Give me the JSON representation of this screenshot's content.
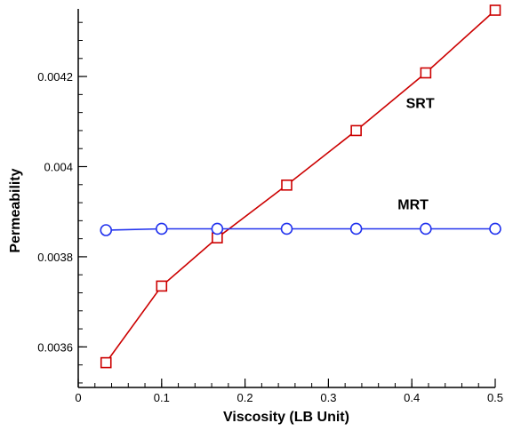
{
  "chart_data": {
    "type": "line",
    "xlabel": "Viscosity (LB Unit)",
    "ylabel": "Permeability",
    "xlim": [
      0,
      0.5
    ],
    "ylim": [
      0.00351,
      0.00435
    ],
    "x_ticks": [
      {
        "value": 0,
        "label": "0"
      },
      {
        "value": 0.1,
        "label": "0.1"
      },
      {
        "value": 0.2,
        "label": "0.2"
      },
      {
        "value": 0.3,
        "label": "0.3"
      },
      {
        "value": 0.4,
        "label": "0.4"
      },
      {
        "value": 0.5,
        "label": "0.5"
      }
    ],
    "y_ticks": [
      {
        "value": 0.0036,
        "label": "0.0036"
      },
      {
        "value": 0.0038,
        "label": "0.0038"
      },
      {
        "value": 0.004,
        "label": "0.004"
      },
      {
        "value": 0.0042,
        "label": "0.0042"
      }
    ],
    "x_minor_step": 0.02,
    "y_minor_step": 4e-05,
    "grid": false,
    "series": [
      {
        "name": "SRT",
        "marker": "square",
        "color": "#cc0000",
        "x": [
          0.0333,
          0.1,
          0.1667,
          0.25,
          0.3333,
          0.4167,
          0.5
        ],
        "values": [
          0.003565,
          0.003735,
          0.003842,
          0.003959,
          0.00408,
          0.004208,
          0.004347
        ],
        "label_at": [
          0.393,
          0.00413
        ]
      },
      {
        "name": "MRT",
        "marker": "circle",
        "color": "#2233ee",
        "x": [
          0.0333,
          0.1,
          0.1667,
          0.25,
          0.3333,
          0.4167,
          0.5
        ],
        "values": [
          0.003859,
          0.003862,
          0.003862,
          0.003862,
          0.003862,
          0.003862,
          0.003862
        ],
        "label_at": [
          0.383,
          0.003905
        ]
      }
    ]
  }
}
